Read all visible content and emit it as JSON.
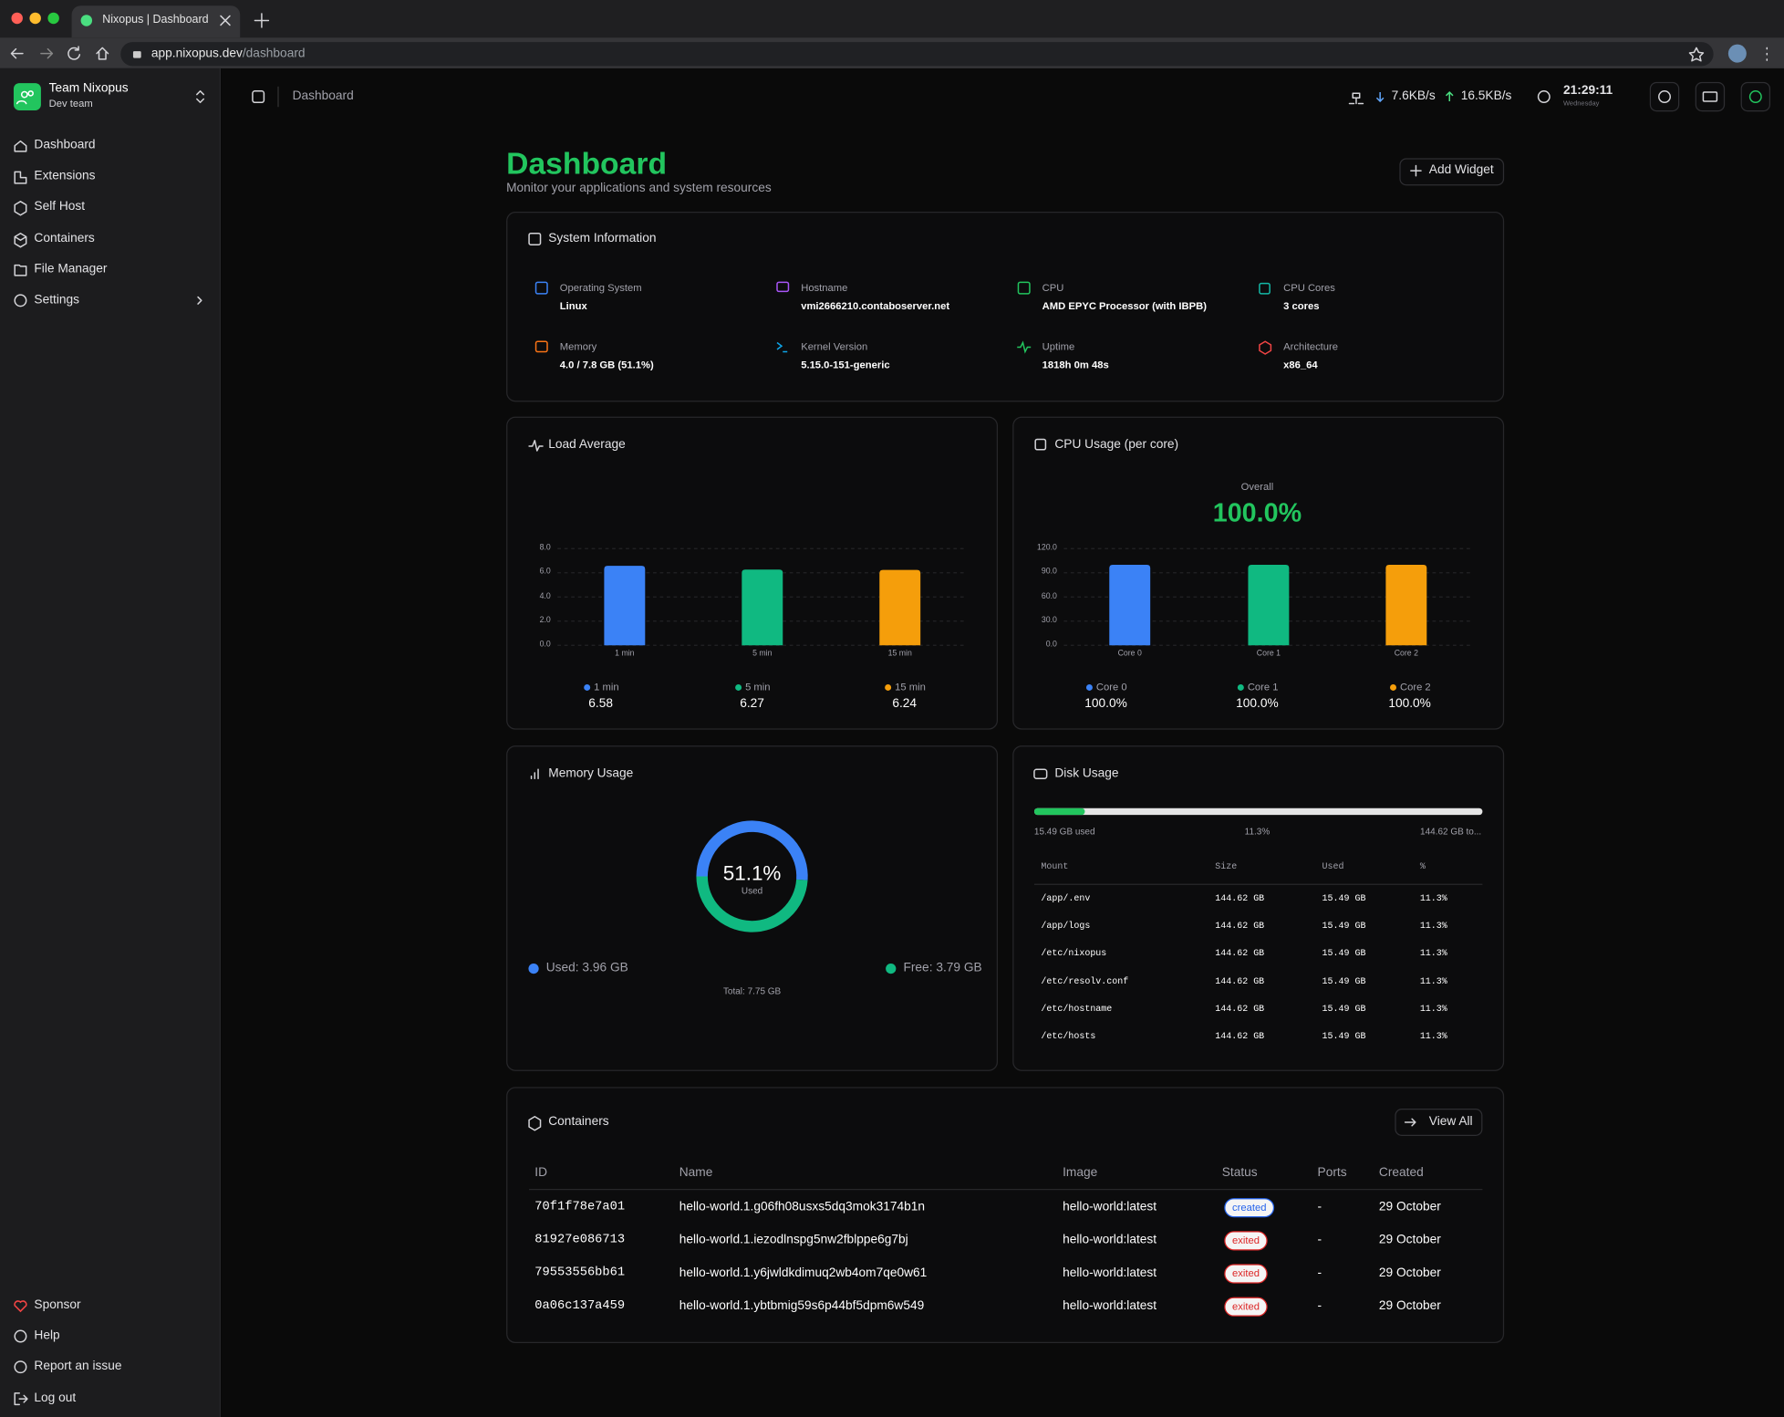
{
  "browser": {
    "tab_title": "Nixopus | Dashboard",
    "url_host": "app.nixopus.dev",
    "url_path": "/dashboard"
  },
  "sidebar": {
    "team_name": "Team Nixopus",
    "team_plan": "Dev team",
    "nav": [
      "Dashboard",
      "Extensions",
      "Self Host",
      "Containers",
      "File Manager",
      "Settings"
    ],
    "footer": [
      "Sponsor",
      "Help",
      "Report an issue",
      "Log out"
    ]
  },
  "topbar": {
    "breadcrumb": "Dashboard",
    "download": "7.6KB/s",
    "upload": "16.5KB/s",
    "time": "21:29:11",
    "day": "Wednesday"
  },
  "header": {
    "title": "Dashboard",
    "subtitle": "Monitor your applications and system resources",
    "add_widget": "Add Widget"
  },
  "system_info": {
    "title": "System Information",
    "items": [
      {
        "label": "Operating System",
        "value": "Linux"
      },
      {
        "label": "Hostname",
        "value": "vmi2666210.contaboserver.net"
      },
      {
        "label": "CPU",
        "value": "AMD EPYC Processor (with IBPB)"
      },
      {
        "label": "CPU Cores",
        "value": "3 cores"
      },
      {
        "label": "Memory",
        "value": "4.0 / 7.8 GB (51.1%)"
      },
      {
        "label": "Kernel Version",
        "value": "5.15.0-151-generic"
      },
      {
        "label": "Uptime",
        "value": "1818h 0m 48s"
      },
      {
        "label": "Architecture",
        "value": "x86_64"
      }
    ]
  },
  "load_average": {
    "type": "bar",
    "title": "Load Average",
    "categories": [
      "1 min",
      "5 min",
      "15 min"
    ],
    "values": [
      6.58,
      6.27,
      6.24
    ],
    "colors": [
      "#3b82f6",
      "#10b981",
      "#f59e0b"
    ],
    "ylim": [
      0,
      8
    ],
    "yticks": [
      {
        "value": 0,
        "label": "0.0"
      },
      {
        "value": 2,
        "label": "2.0"
      },
      {
        "value": 4,
        "label": "4.0"
      },
      {
        "value": 6,
        "label": "6.0"
      },
      {
        "value": 8,
        "label": "8.0"
      }
    ],
    "grid": true
  },
  "cpu_usage": {
    "type": "bar",
    "title": "CPU Usage (per core)",
    "overall_label": "Overall",
    "overall": "100.0%",
    "categories": [
      "Core 0",
      "Core 1",
      "Core 2"
    ],
    "values": [
      100,
      100,
      100
    ],
    "value_labels": [
      "100.0%",
      "100.0%",
      "100.0%"
    ],
    "colors": [
      "#3b82f6",
      "#10b981",
      "#f59e0b"
    ],
    "ylim": [
      0,
      120
    ],
    "yticks": [
      {
        "value": 0,
        "label": "0.0"
      },
      {
        "value": 30,
        "label": "30.0"
      },
      {
        "value": 60,
        "label": "60.0"
      },
      {
        "value": 90,
        "label": "90.0"
      },
      {
        "value": 120,
        "label": "120.0"
      }
    ],
    "grid": true
  },
  "memory_usage": {
    "type": "pie",
    "title": "Memory Usage",
    "center_value": "51.1%",
    "center_label": "Used",
    "values": [
      3.96,
      3.79
    ],
    "value_labels": [
      "Used: 3.96 GB",
      "Free: 3.79 GB"
    ],
    "colors": [
      "#3b82f6",
      "#10b981"
    ],
    "total": "Total: 7.75 GB"
  },
  "disk_usage": {
    "type": "progress",
    "title": "Disk Usage",
    "value": 11.3,
    "value_label": "11.3%",
    "xlim": [
      0,
      100
    ],
    "color": "#22c55e",
    "used_label": "15.49 GB used",
    "total_label": "144.62 GB to...",
    "table": {
      "columns": [
        "Mount",
        "Size",
        "Used",
        "%"
      ],
      "rows": [
        [
          "/app/.env",
          "144.62 GB",
          "15.49 GB",
          "11.3%"
        ],
        [
          "/app/logs",
          "144.62 GB",
          "15.49 GB",
          "11.3%"
        ],
        [
          "/etc/nixopus",
          "144.62 GB",
          "15.49 GB",
          "11.3%"
        ],
        [
          "/etc/resolv.conf",
          "144.62 GB",
          "15.49 GB",
          "11.3%"
        ],
        [
          "/etc/hostname",
          "144.62 GB",
          "15.49 GB",
          "11.3%"
        ],
        [
          "/etc/hosts",
          "144.62 GB",
          "15.49 GB",
          "11.3%"
        ]
      ]
    }
  },
  "containers": {
    "title": "Containers",
    "view_all": "View All",
    "columns": [
      "ID",
      "Name",
      "Image",
      "Status",
      "Ports",
      "Created"
    ],
    "status_colors": {
      "created": "#2563eb",
      "exited": "#dc2626"
    },
    "rows": [
      [
        "70f1f78e7a01",
        "hello-world.1.g06fh08usxs5dq3mok3174b1n",
        "hello-world:latest",
        "created",
        "-",
        "29 October"
      ],
      [
        "81927e086713",
        "hello-world.1.iezodlnspg5nw2fblppe6g7bj",
        "hello-world:latest",
        "exited",
        "-",
        "29 October"
      ],
      [
        "79553556bb61",
        "hello-world.1.y6jwldkdimuq2wb4om7qe0w61",
        "hello-world:latest",
        "exited",
        "-",
        "29 October"
      ],
      [
        "0a06c137a459",
        "hello-world.1.ybtbmig59s6p44bf5dpm6w549",
        "hello-world:latest",
        "exited",
        "-",
        "29 October"
      ]
    ]
  }
}
